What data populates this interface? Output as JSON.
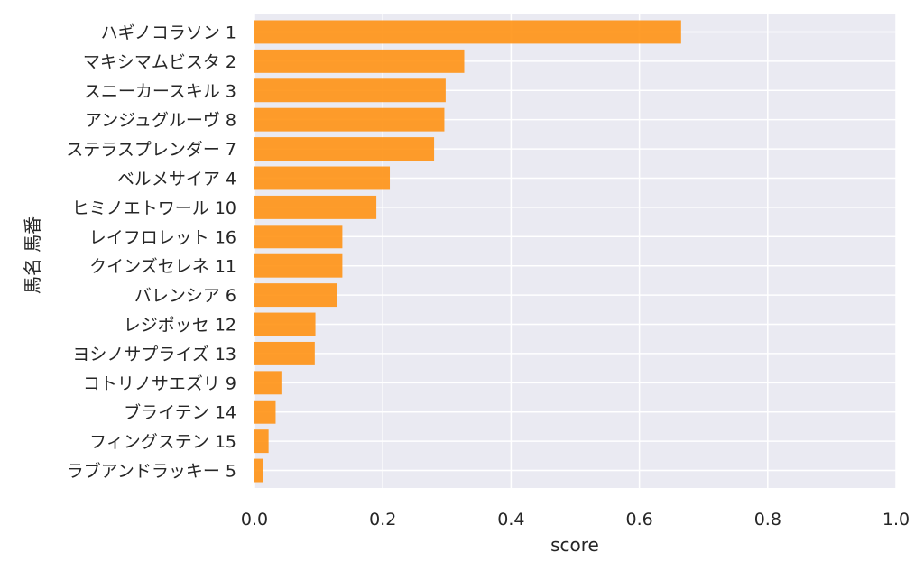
{
  "chart_data": {
    "type": "bar",
    "orientation": "horizontal",
    "categories": [
      "ハギノコラソン 1",
      "マキシマムビスタ 2",
      "スニーカースキル 3",
      "アンジュグルーヴ 8",
      "ステラスプレンダー 7",
      "ベルメサイア 4",
      "ヒミノエトワール 10",
      "レイフロレット 16",
      "クインズセレネ 11",
      "バレンシア 6",
      "レジポッセ 12",
      "ヨシノサプライズ 13",
      "コトリノサエズリ 9",
      "ブライテン 14",
      "フィングステン 15",
      "ラブアンドラッキー 5"
    ],
    "values": [
      0.665,
      0.327,
      0.298,
      0.296,
      0.28,
      0.211,
      0.19,
      0.137,
      0.137,
      0.129,
      0.095,
      0.094,
      0.042,
      0.033,
      0.022,
      0.014
    ],
    "xlabel": "score",
    "ylabel": "馬名 馬番",
    "xlim": [
      0,
      1.0
    ],
    "xticks": [
      "0.0",
      "0.2",
      "0.4",
      "0.6",
      "0.8",
      "1.0"
    ],
    "grid": true,
    "bar_color": "#ff9214",
    "plot_background": "#eaeaf2"
  }
}
